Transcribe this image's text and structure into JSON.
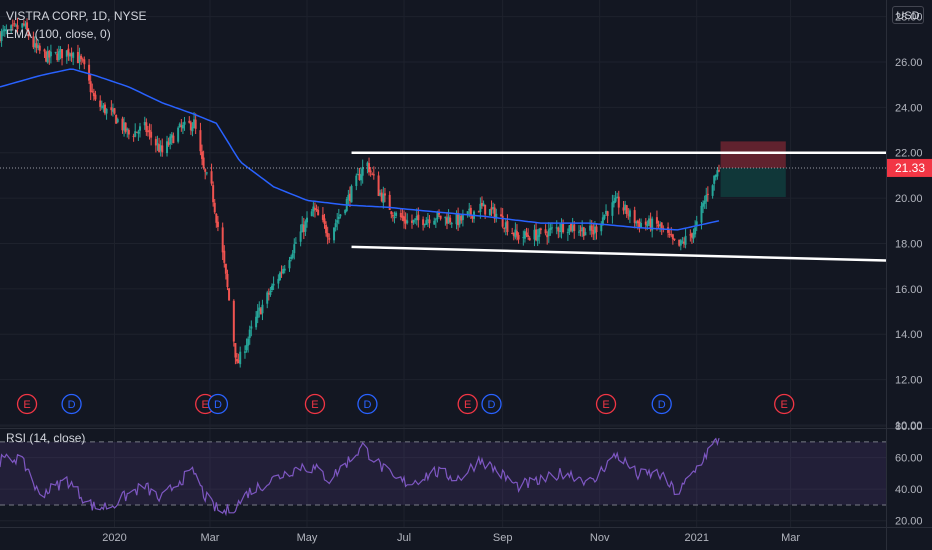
{
  "header": {
    "title": "VISTRA CORP, 1D, NYSE",
    "ema_label": "EMA (100, close, 0)",
    "currency": "USD"
  },
  "rsi": {
    "label": "RSI (14, close)"
  },
  "colors": {
    "up": "#26a69a",
    "down": "#ef5350",
    "ema": "#2962ff",
    "rsi": "#7e57c2",
    "rsi_band": "#7e57c2",
    "background": "#131722",
    "grid": "#1e222d",
    "price_tag": "#f23645",
    "trendline": "#ffffff"
  },
  "chart_data": [
    {
      "type": "candlestick",
      "title": "VISTRA CORP, 1D, NYSE",
      "y_ticks": [
        "28.00",
        "26.00",
        "24.00",
        "22.00",
        "20.00",
        "18.00",
        "16.00",
        "14.00",
        "12.00",
        "10.00"
      ],
      "ylim": [
        10,
        28.6
      ],
      "x_ticks": [
        "2020",
        "Mar",
        "May",
        "Jul",
        "Sep",
        "Nov",
        "2021",
        "Mar"
      ],
      "x_tick_dates": [
        "2020-01-01",
        "2020-03-01",
        "2020-05-01",
        "2020-07-01",
        "2020-09-01",
        "2020-11-01",
        "2021-01-01",
        "2021-03-01"
      ],
      "xlim": [
        "2019-10-21",
        "2021-04-30"
      ],
      "last_price": "21.33",
      "price_series_approx": [
        [
          "2019-10-21",
          27.2
        ],
        [
          "2019-11-05",
          27.6
        ],
        [
          "2019-11-12",
          26.6
        ],
        [
          "2019-11-20",
          26.2
        ],
        [
          "2019-12-05",
          26.5
        ],
        [
          "2019-12-12",
          25.9
        ],
        [
          "2019-12-20",
          24.2
        ],
        [
          "2020-01-01",
          23.6
        ],
        [
          "2020-01-10",
          22.8
        ],
        [
          "2020-01-20",
          23.1
        ],
        [
          "2020-01-31",
          22.0
        ],
        [
          "2020-02-10",
          23.0
        ],
        [
          "2020-02-20",
          23.3
        ],
        [
          "2020-02-26",
          21.2
        ],
        [
          "2020-03-02",
          20.4
        ],
        [
          "2020-03-09",
          17.5
        ],
        [
          "2020-03-13",
          15.5
        ],
        [
          "2020-03-18",
          12.6
        ],
        [
          "2020-03-23",
          13.5
        ],
        [
          "2020-04-01",
          15.0
        ],
        [
          "2020-04-15",
          16.8
        ],
        [
          "2020-04-28",
          18.6
        ],
        [
          "2020-05-05",
          19.5
        ],
        [
          "2020-05-15",
          18.4
        ],
        [
          "2020-05-27",
          20.0
        ],
        [
          "2020-06-05",
          21.3
        ],
        [
          "2020-06-08",
          21.5
        ],
        [
          "2020-06-15",
          20.3
        ],
        [
          "2020-06-25",
          19.3
        ],
        [
          "2020-07-05",
          18.9
        ],
        [
          "2020-07-20",
          19.2
        ],
        [
          "2020-08-05",
          19.0
        ],
        [
          "2020-08-18",
          19.6
        ],
        [
          "2020-08-28",
          19.3
        ],
        [
          "2020-09-10",
          18.3
        ],
        [
          "2020-09-25",
          18.4
        ],
        [
          "2020-10-10",
          18.8
        ],
        [
          "2020-10-28",
          18.5
        ],
        [
          "2020-11-05",
          19.4
        ],
        [
          "2020-11-12",
          19.8
        ],
        [
          "2020-11-25",
          18.9
        ],
        [
          "2020-12-08",
          18.8
        ],
        [
          "2020-12-20",
          17.8
        ],
        [
          "2020-12-31",
          18.6
        ],
        [
          "2021-01-08",
          20.3
        ],
        [
          "2021-01-15",
          21.33
        ]
      ],
      "ema": {
        "label": "EMA (100, close, 0)",
        "values_approx": [
          [
            "2019-10-21",
            24.9
          ],
          [
            "2019-11-15",
            25.4
          ],
          [
            "2019-12-05",
            25.7
          ],
          [
            "2019-12-20",
            25.4
          ],
          [
            "2020-01-10",
            24.9
          ],
          [
            "2020-01-31",
            24.2
          ],
          [
            "2020-02-20",
            23.7
          ],
          [
            "2020-03-05",
            23.3
          ],
          [
            "2020-03-20",
            21.6
          ],
          [
            "2020-04-10",
            20.5
          ],
          [
            "2020-05-01",
            19.9
          ],
          [
            "2020-05-25",
            19.7
          ],
          [
            "2020-06-20",
            19.6
          ],
          [
            "2020-07-20",
            19.4
          ],
          [
            "2020-08-20",
            19.2
          ],
          [
            "2020-09-25",
            18.9
          ],
          [
            "2020-10-25",
            18.9
          ],
          [
            "2020-11-25",
            18.7
          ],
          [
            "2020-12-20",
            18.6
          ],
          [
            "2021-01-15",
            19.0
          ]
        ]
      },
      "trendlines": [
        {
          "name": "resistance",
          "from": [
            "2020-05-29",
            22.0
          ],
          "to": [
            "2021-04-30",
            22.0
          ]
        },
        {
          "name": "support",
          "from": [
            "2020-05-29",
            17.85
          ],
          "to": [
            "2021-04-30",
            17.25
          ]
        }
      ],
      "position_box": {
        "from": "2021-01-16",
        "to": "2021-02-26",
        "entry": 21.33,
        "stop": 22.5,
        "target": 20.05
      },
      "events": [
        {
          "label": "E",
          "date": "2019-11-07",
          "type": "earnings"
        },
        {
          "label": "D",
          "date": "2019-12-05",
          "type": "dividend"
        },
        {
          "label": "E",
          "date": "2020-02-27",
          "type": "earnings"
        },
        {
          "label": "D",
          "date": "2020-03-06",
          "type": "dividend"
        },
        {
          "label": "E",
          "date": "2020-05-06",
          "type": "earnings"
        },
        {
          "label": "D",
          "date": "2020-06-08",
          "type": "dividend"
        },
        {
          "label": "E",
          "date": "2020-08-10",
          "type": "earnings"
        },
        {
          "label": "D",
          "date": "2020-08-25",
          "type": "dividend"
        },
        {
          "label": "E",
          "date": "2020-11-05",
          "type": "earnings"
        },
        {
          "label": "D",
          "date": "2020-12-10",
          "type": "dividend"
        },
        {
          "label": "E",
          "date": "2021-02-25",
          "type": "earnings"
        }
      ]
    },
    {
      "type": "line",
      "title": "RSI (14, close)",
      "y_ticks": [
        "80.00",
        "60.00",
        "40.00",
        "20.00"
      ],
      "ylim": [
        16,
        82
      ],
      "bands": [
        70,
        30
      ],
      "values_approx": [
        [
          "2019-10-21",
          58
        ],
        [
          "2019-11-01",
          60
        ],
        [
          "2019-11-08",
          52
        ],
        [
          "2019-11-14",
          37
        ],
        [
          "2019-11-22",
          40
        ],
        [
          "2019-12-02",
          46
        ],
        [
          "2019-12-12",
          35
        ],
        [
          "2019-12-20",
          28
        ],
        [
          "2019-12-31",
          30
        ],
        [
          "2020-01-10",
          37
        ],
        [
          "2020-01-20",
          42
        ],
        [
          "2020-01-30",
          33
        ],
        [
          "2020-02-10",
          45
        ],
        [
          "2020-02-20",
          51
        ],
        [
          "2020-02-26",
          37
        ],
        [
          "2020-03-02",
          30
        ],
        [
          "2020-03-09",
          25
        ],
        [
          "2020-03-18",
          30
        ],
        [
          "2020-03-25",
          38
        ],
        [
          "2020-04-05",
          44
        ],
        [
          "2020-04-15",
          49
        ],
        [
          "2020-04-28",
          55
        ],
        [
          "2020-05-08",
          52
        ],
        [
          "2020-05-15",
          46
        ],
        [
          "2020-05-27",
          58
        ],
        [
          "2020-06-05",
          67
        ],
        [
          "2020-06-15",
          56
        ],
        [
          "2020-06-25",
          46
        ],
        [
          "2020-07-05",
          44
        ],
        [
          "2020-07-20",
          51
        ],
        [
          "2020-08-05",
          47
        ],
        [
          "2020-08-18",
          59
        ],
        [
          "2020-08-28",
          52
        ],
        [
          "2020-09-10",
          42
        ],
        [
          "2020-09-25",
          45
        ],
        [
          "2020-10-10",
          51
        ],
        [
          "2020-10-28",
          44
        ],
        [
          "2020-11-05",
          56
        ],
        [
          "2020-11-12",
          62
        ],
        [
          "2020-11-25",
          49
        ],
        [
          "2020-12-08",
          50
        ],
        [
          "2020-12-20",
          37
        ],
        [
          "2020-12-31",
          52
        ],
        [
          "2021-01-08",
          64
        ],
        [
          "2021-01-15",
          72
        ]
      ]
    }
  ]
}
